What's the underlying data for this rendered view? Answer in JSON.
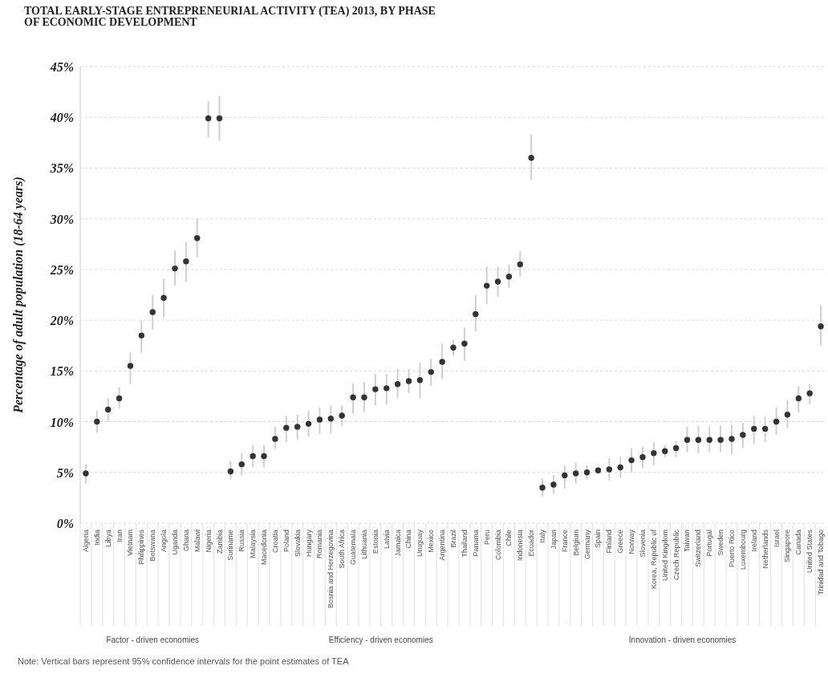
{
  "chart_data": {
    "type": "scatter",
    "title": "TOTAL EARLY-STAGE ENTREPRENEURIAL ACTIVITY (TEA) 2013, BY PHASE\n OF ECONOMIC DEVELOPMENT",
    "ylabel": "Percentage of adult population (18-64 years)",
    "categories": [
      "Algeria",
      "India",
      "Libya",
      "Iran",
      "Vietnam",
      "Philippines",
      "Botswana",
      "Angola",
      "Uganda",
      "Ghana",
      "Malawi",
      "Nigeria",
      "Zambia",
      "Suriname",
      "Russia",
      "Malaysia",
      "Macedonia",
      "Croatia",
      "Poland",
      "Slovakia",
      "Hungary",
      "Romania",
      "Bosnia and Herzegovina",
      "South Africa",
      "Guatemala",
      "Lithuania",
      "Estonia",
      "Latvia",
      "Jamaica",
      "China",
      "Uruguay",
      "Mexico",
      "Argentina",
      "Brazil",
      "Thailand",
      "Panama",
      "Peru",
      "Colombia",
      "Chile",
      "Indonesia",
      "Ecuador",
      "Italy",
      "Japan",
      "France",
      "Belgium",
      "Germany",
      "Spain",
      "Finland",
      "Greece",
      "Norway",
      "Slovenia",
      "Korea, Republic of",
      "United Kingdom",
      "Czech Republic",
      "Taiwan",
      "Switzerland",
      "Portugal",
      "Sweden",
      "Puerto Rico",
      "Luxembourg",
      "Ireland",
      "Netherlands",
      "Israel",
      "Singapore",
      "Canada",
      "United States",
      "Trinidad and Tobago"
    ],
    "values": [
      4.9,
      10.0,
      11.2,
      12.3,
      15.5,
      18.5,
      20.8,
      22.2,
      25.1,
      25.8,
      28.1,
      39.9,
      39.9,
      5.1,
      5.8,
      6.6,
      6.6,
      8.3,
      9.4,
      9.5,
      9.8,
      10.2,
      10.3,
      10.6,
      12.4,
      12.4,
      13.2,
      13.3,
      13.7,
      14.0,
      14.1,
      14.9,
      15.9,
      17.3,
      17.7,
      20.6,
      23.4,
      23.8,
      24.3,
      25.5,
      36.0,
      3.5,
      3.8,
      4.7,
      4.9,
      5.0,
      5.2,
      5.3,
      5.5,
      6.2,
      6.5,
      6.9,
      7.1,
      7.4,
      8.2,
      8.2,
      8.2,
      8.2,
      8.3,
      8.7,
      9.3,
      9.3,
      10.0,
      10.7,
      12.3,
      12.8,
      19.4
    ],
    "errors": [
      [
        3.9,
        5.8
      ],
      [
        8.9,
        11.1
      ],
      [
        10.0,
        12.3
      ],
      [
        11.3,
        13.4
      ],
      [
        13.7,
        16.8
      ],
      [
        16.8,
        20.0
      ],
      [
        19.1,
        22.5
      ],
      [
        20.3,
        24.1
      ],
      [
        23.4,
        26.9
      ],
      [
        23.8,
        27.7
      ],
      [
        26.2,
        30.0
      ],
      [
        38.0,
        41.6
      ],
      [
        37.7,
        42.1
      ],
      [
        4.3,
        6.1
      ],
      [
        4.7,
        6.9
      ],
      [
        5.5,
        7.7
      ],
      [
        5.5,
        7.7
      ],
      [
        7.3,
        9.5
      ],
      [
        8.0,
        10.6
      ],
      [
        8.2,
        10.7
      ],
      [
        8.5,
        11.1
      ],
      [
        8.8,
        11.4
      ],
      [
        8.8,
        11.6
      ],
      [
        9.6,
        11.6
      ],
      [
        10.8,
        13.8
      ],
      [
        11.0,
        13.9
      ],
      [
        11.6,
        14.7
      ],
      [
        11.7,
        14.7
      ],
      [
        12.3,
        15.2
      ],
      [
        12.8,
        15.2
      ],
      [
        12.3,
        15.8
      ],
      [
        13.5,
        16.2
      ],
      [
        14.2,
        17.7
      ],
      [
        16.5,
        18.1
      ],
      [
        16.0,
        19.3
      ],
      [
        18.9,
        22.5
      ],
      [
        21.6,
        25.3
      ],
      [
        22.3,
        25.3
      ],
      [
        23.2,
        25.5
      ],
      [
        24.3,
        26.8
      ],
      [
        33.8,
        38.3
      ],
      [
        2.6,
        4.4
      ],
      [
        2.9,
        4.7
      ],
      [
        3.4,
        5.7
      ],
      [
        3.9,
        6.0
      ],
      [
        4.3,
        5.7
      ],
      [
        4.9,
        5.5
      ],
      [
        4.2,
        6.4
      ],
      [
        4.5,
        6.5
      ],
      [
        5.0,
        7.4
      ],
      [
        5.4,
        7.5
      ],
      [
        5.7,
        8.0
      ],
      [
        6.5,
        7.7
      ],
      [
        6.5,
        8.1
      ],
      [
        7.0,
        9.5
      ],
      [
        6.9,
        9.6
      ],
      [
        7.0,
        9.5
      ],
      [
        7.0,
        9.6
      ],
      [
        6.8,
        9.7
      ],
      [
        7.4,
        9.9
      ],
      [
        7.8,
        10.6
      ],
      [
        8.0,
        10.5
      ],
      [
        8.7,
        11.4
      ],
      [
        9.4,
        12.1
      ],
      [
        10.9,
        13.5
      ],
      [
        11.7,
        13.7
      ],
      [
        17.5,
        21.5
      ]
    ],
    "color": "#333333",
    "marker": "circle",
    "ylim": [
      0,
      45
    ],
    "yticks": [
      {
        "value": 0,
        "label": "0%"
      },
      {
        "value": 5,
        "label": "5%"
      },
      {
        "value": 10,
        "label": "10%"
      },
      {
        "value": 15,
        "label": "15%"
      },
      {
        "value": 20,
        "label": "20%"
      },
      {
        "value": 25,
        "label": "25%"
      },
      {
        "value": 30,
        "label": "30%"
      },
      {
        "value": 35,
        "label": "35%"
      },
      {
        "value": 40,
        "label": "40%"
      },
      {
        "value": 45,
        "label": "45%"
      }
    ],
    "grid": "y",
    "annotations": [
      "Factor - driven economies",
      "Efficiency - driven economies",
      "Innovation - driven economies",
      "Note: Vertical bars represent 95% confidence intervals for the point estimates of TEA"
    ]
  }
}
